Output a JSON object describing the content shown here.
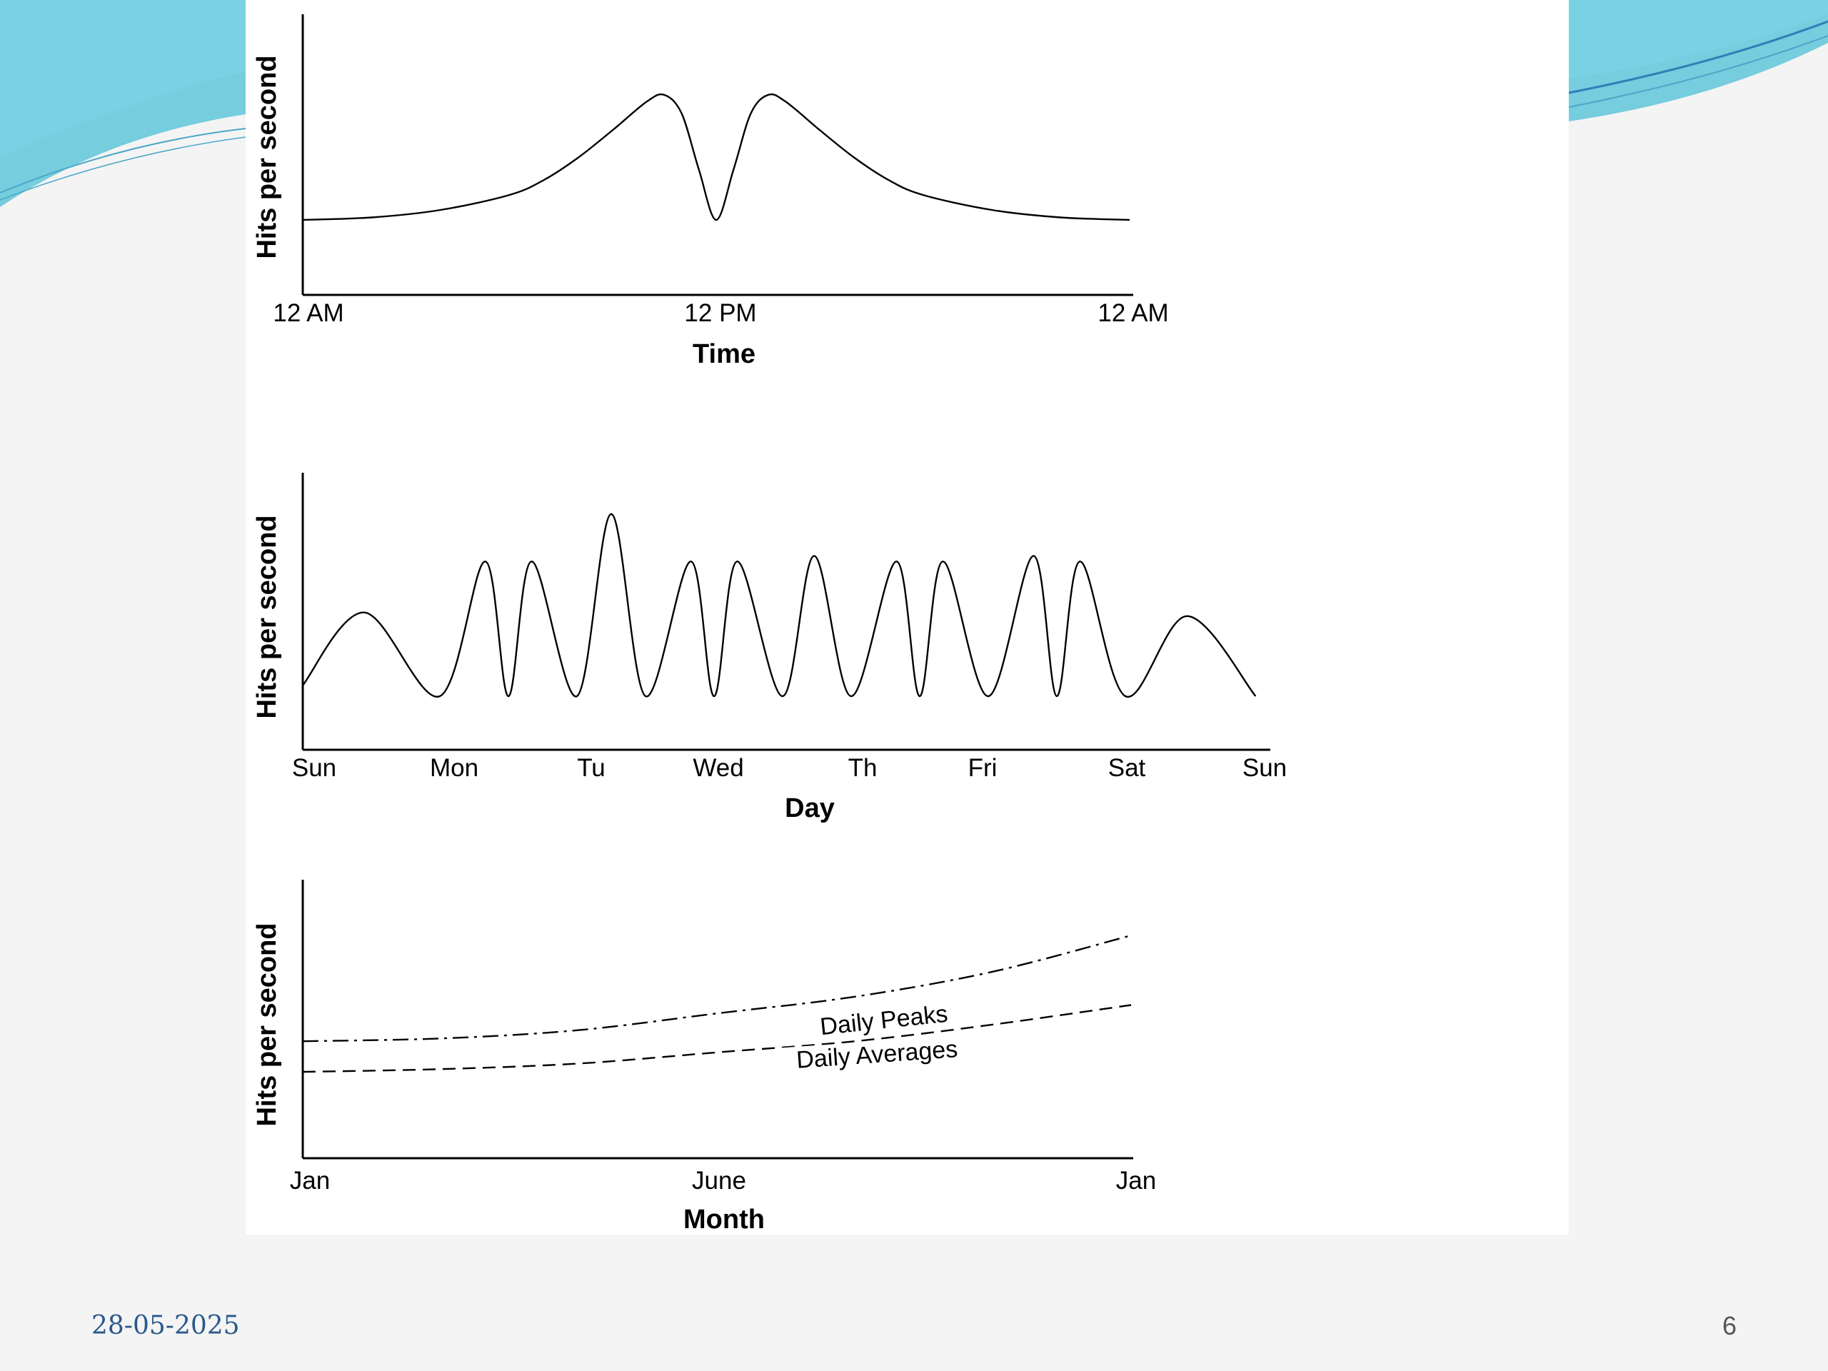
{
  "slide": {
    "date": "28-05-2025",
    "page_number": "6"
  },
  "chart_data": [
    {
      "type": "line",
      "ylabel": "Hits per second",
      "xlabel": "Time",
      "x_ticks": [
        "12 AM",
        "12 PM",
        "12 AM"
      ],
      "x_range_hours": [
        0,
        24
      ],
      "series": [
        {
          "x": [
            0,
            2,
            4,
            6,
            7,
            8,
            9,
            10,
            10.5,
            11,
            11.5,
            12,
            12.5,
            13,
            13.5,
            14,
            15,
            16,
            17,
            18,
            20,
            22,
            24
          ],
          "y": [
            0,
            0.02,
            0.08,
            0.2,
            0.32,
            0.5,
            0.72,
            0.95,
            1.0,
            0.85,
            0.4,
            0.0,
            0.4,
            0.85,
            1.0,
            0.95,
            0.72,
            0.5,
            0.32,
            0.2,
            0.08,
            0.02,
            0
          ]
        }
      ]
    },
    {
      "type": "line",
      "ylabel": "Hits per second",
      "xlabel": "Day",
      "x_ticks": [
        "Sun",
        "Mon",
        "Tu",
        "Wed",
        "Th",
        "Fri",
        "Sat",
        "Sun"
      ],
      "series": [
        {
          "x": [
            0,
            0.45,
            1,
            1.33,
            1.5,
            1.67,
            2,
            2.25,
            2.5,
            2.83,
            3,
            3.17,
            3.5,
            3.73,
            4,
            4.33,
            4.5,
            4.67,
            5,
            5.33,
            5.5,
            5.67,
            6,
            6.45,
            6.95
          ],
          "y": [
            0.06,
            0.46,
            0.0,
            0.74,
            0.0,
            0.74,
            0.0,
            1.0,
            0.0,
            0.74,
            0.0,
            0.74,
            0.0,
            0.77,
            0.0,
            0.74,
            0.0,
            0.74,
            0.0,
            0.77,
            0.0,
            0.74,
            0.0,
            0.44,
            0.0
          ]
        }
      ]
    },
    {
      "type": "line",
      "ylabel": "Hits per second",
      "xlabel": "Month",
      "x_ticks": [
        "Jan",
        "June",
        "Jan"
      ],
      "x_range_months": [
        0,
        12
      ],
      "y_range": [
        0,
        1
      ],
      "series": [
        {
          "name": "Daily Peaks",
          "line_style": "dash-dot",
          "x": [
            0,
            2,
            4,
            6,
            8,
            10,
            12
          ],
          "y": [
            0.42,
            0.43,
            0.46,
            0.52,
            0.58,
            0.67,
            0.8
          ]
        },
        {
          "name": "Daily Averages",
          "line_style": "dashed",
          "x": [
            0,
            2,
            4,
            6,
            8,
            10,
            12
          ],
          "y": [
            0.31,
            0.32,
            0.34,
            0.38,
            0.42,
            0.48,
            0.55
          ]
        }
      ]
    }
  ]
}
